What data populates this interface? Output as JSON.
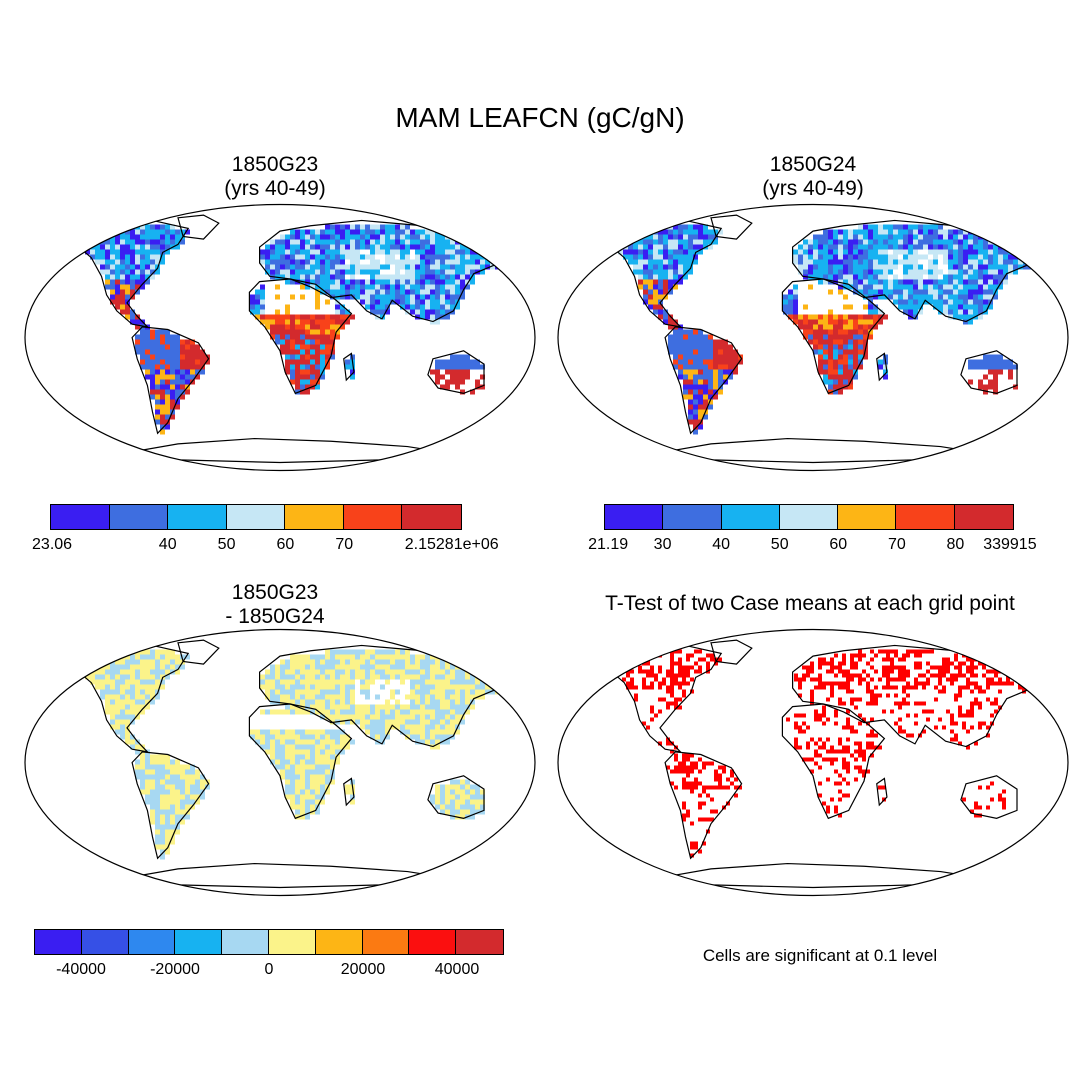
{
  "title": "MAM LEAFCN (gC/gN)",
  "panels": {
    "a": {
      "title": "1850G23\n(yrs 40-49)"
    },
    "b": {
      "title": "1850G24\n(yrs 40-49)"
    },
    "c": {
      "title": "1850G23\n- 1850G24"
    },
    "d": {
      "title": "T-Test of two Case means at each grid point",
      "note": "Cells are significant at 0.1 level"
    }
  },
  "colorbars": {
    "a": {
      "colors": [
        "#3a1ef2",
        "#3e6ee0",
        "#17b2f1",
        "#c6e7f5",
        "#fdb515",
        "#f8421a",
        "#d32a2d"
      ],
      "labels": [
        "23.06",
        "40",
        "50",
        "60",
        "70",
        "2.15281e+06"
      ]
    },
    "b": {
      "colors": [
        "#3a1ef2",
        "#3e6ee0",
        "#17b2f1",
        "#c6e7f5",
        "#fdb515",
        "#f8421a",
        "#d32a2d"
      ],
      "labels": [
        "21.19",
        "30",
        "40",
        "50",
        "60",
        "70",
        "80",
        "339915"
      ]
    },
    "c": {
      "colors": [
        "#3a1ef2",
        "#3650e6",
        "#2e88ef",
        "#17b2f1",
        "#a7d8f2",
        "#fbf38a",
        "#fdb515",
        "#fb7a12",
        "#fb0f0f",
        "#d32a2d"
      ],
      "labels": [
        "-40000",
        "-20000",
        "0",
        "20000",
        "40000"
      ]
    }
  },
  "map_palette": {
    "ocean": "#ffffff",
    "coast": "#000000",
    "significant": "#ff0000"
  }
}
